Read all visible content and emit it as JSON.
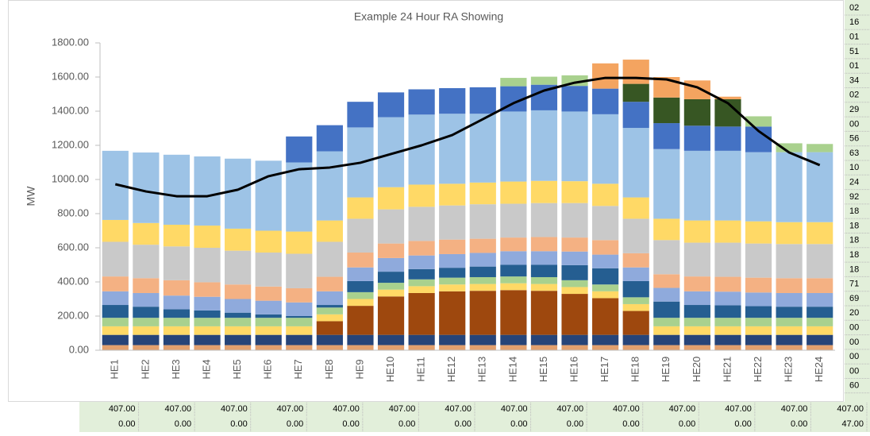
{
  "chart_data": {
    "type": "bar",
    "stacked": true,
    "title": "Example 24 Hour RA Showing",
    "ylabel": "MW",
    "categories": [
      "HE1",
      "HE2",
      "HE3",
      "HE4",
      "HE5",
      "HE6",
      "HE7",
      "HE8",
      "HE9",
      "HE10",
      "HE11",
      "HE12",
      "HE13",
      "HE14",
      "HE15",
      "HE16",
      "HE17",
      "HE18",
      "HE19",
      "HE20",
      "HE21",
      "HE22",
      "HE23",
      "HE24"
    ],
    "ylim": [
      0,
      1800
    ],
    "yticks": [
      {
        "value": 0,
        "label": "0.00"
      },
      {
        "value": 200,
        "label": "200.00"
      },
      {
        "value": 400,
        "label": "400.00"
      },
      {
        "value": 600,
        "label": "600.00"
      },
      {
        "value": 800,
        "label": "800.00"
      },
      {
        "value": 1000,
        "label": "1000.00"
      },
      {
        "value": 1200,
        "label": "1200.00"
      },
      {
        "value": 1400,
        "label": "1400.00"
      },
      {
        "value": 1600,
        "label": "1600.00"
      },
      {
        "value": 1800,
        "label": "1800.00"
      }
    ],
    "series": [
      {
        "color": "#e2a06e",
        "values": [
          30,
          30,
          30,
          30,
          30,
          30,
          30,
          30,
          30,
          30,
          30,
          30,
          30,
          30,
          30,
          30,
          30,
          30,
          30,
          30,
          30,
          30,
          30,
          30
        ]
      },
      {
        "color": "#264478",
        "values": [
          60,
          60,
          60,
          60,
          60,
          60,
          60,
          60,
          60,
          60,
          60,
          60,
          60,
          60,
          60,
          60,
          60,
          60,
          60,
          60,
          60,
          60,
          60,
          60
        ]
      },
      {
        "color": "#9e480e",
        "values": [
          0,
          0,
          0,
          0,
          0,
          0,
          0,
          80,
          170,
          225,
          245,
          255,
          258,
          262,
          258,
          240,
          215,
          140,
          0,
          0,
          0,
          0,
          0,
          0
        ]
      },
      {
        "color": "#ffd966",
        "values": [
          50,
          50,
          50,
          50,
          50,
          50,
          50,
          40,
          40,
          40,
          40,
          40,
          40,
          40,
          40,
          40,
          40,
          40,
          50,
          50,
          50,
          50,
          50,
          50
        ]
      },
      {
        "color": "#a9d18e",
        "values": [
          50,
          50,
          50,
          50,
          50,
          50,
          50,
          40,
          40,
          40,
          40,
          40,
          40,
          40,
          40,
          40,
          40,
          40,
          50,
          50,
          50,
          50,
          50,
          50
        ]
      },
      {
        "color": "#255e91",
        "values": [
          75,
          65,
          50,
          43,
          30,
          20,
          10,
          15,
          65,
          65,
          60,
          58,
          62,
          68,
          72,
          88,
          95,
          95,
          95,
          75,
          73,
          68,
          65,
          65
        ]
      },
      {
        "color": "#8faadc",
        "values": [
          80,
          80,
          80,
          80,
          80,
          80,
          80,
          80,
          80,
          80,
          80,
          80,
          80,
          80,
          80,
          80,
          80,
          80,
          80,
          80,
          80,
          80,
          80,
          80
        ]
      },
      {
        "color": "#f4b183",
        "values": [
          87,
          87,
          90,
          85,
          85,
          83,
          83,
          85,
          87,
          85,
          85,
          85,
          83,
          80,
          83,
          82,
          85,
          83,
          80,
          87,
          87,
          87,
          87,
          87
        ]
      },
      {
        "color": "#c9c9c9",
        "values": [
          203,
          196,
          198,
          202,
          198,
          199,
          202,
          205,
          198,
          200,
          200,
          200,
          202,
          198,
          199,
          202,
          200,
          202,
          200,
          198,
          200,
          200,
          200,
          200
        ]
      },
      {
        "color": "#ffd966",
        "values": [
          128,
          127,
          127,
          130,
          129,
          128,
          130,
          125,
          125,
          130,
          130,
          127,
          127,
          130,
          130,
          128,
          130,
          125,
          125,
          130,
          130,
          130,
          128,
          128
        ]
      },
      {
        "color": "#9dc3e6",
        "values": [
          405,
          413,
          410,
          405,
          410,
          410,
          405,
          405,
          410,
          410,
          410,
          410,
          403,
          410,
          413,
          408,
          407,
          407,
          408,
          408,
          408,
          405,
          410,
          410
        ]
      },
      {
        "color": "#4472c4",
        "values": [
          0,
          0,
          0,
          0,
          0,
          0,
          152,
          153,
          150,
          145,
          148,
          150,
          155,
          148,
          150,
          150,
          150,
          153,
          152,
          147,
          142,
          150,
          0,
          0
        ]
      },
      {
        "color": "#375623",
        "values": [
          0,
          0,
          0,
          0,
          0,
          0,
          0,
          0,
          0,
          0,
          0,
          0,
          0,
          0,
          0,
          0,
          0,
          105,
          150,
          155,
          160,
          0,
          0,
          0
        ]
      },
      {
        "color": "#a9d18e",
        "values": [
          0,
          0,
          0,
          0,
          0,
          0,
          0,
          0,
          0,
          0,
          0,
          0,
          0,
          49,
          47,
          62,
          0,
          0,
          0,
          0,
          0,
          60,
          52,
          48
        ]
      },
      {
        "color": "#f4a460",
        "values": [
          0,
          0,
          0,
          0,
          0,
          0,
          0,
          0,
          0,
          0,
          0,
          0,
          0,
          0,
          0,
          0,
          148,
          142,
          120,
          110,
          15,
          0,
          0,
          0
        ]
      }
    ],
    "line": {
      "color": "#000000",
      "values": [
        972,
        930,
        902,
        902,
        940,
        1019,
        1060,
        1070,
        1098,
        1149,
        1200,
        1260,
        1353,
        1447,
        1521,
        1567,
        1595,
        1595,
        1586,
        1540,
        1447,
        1284,
        1158,
        1084
      ]
    }
  },
  "sheet": {
    "right_column": [
      "02",
      "16",
      "01",
      "51",
      "01",
      "34",
      "02",
      "29",
      "00",
      "56",
      "63",
      "10",
      "24",
      "92",
      "18",
      "18",
      "18",
      "18",
      "18",
      "71",
      "69",
      "20",
      "00",
      "00",
      "00",
      "00",
      "60"
    ],
    "row1": [
      "407.00",
      "407.00",
      "407.00",
      "407.00",
      "407.00",
      "407.00",
      "407.00",
      "407.00",
      "407.00",
      "407.00",
      "407.00",
      "407.00",
      "407.00",
      "407.00"
    ],
    "row2": [
      "0.00",
      "0.00",
      "0.00",
      "0.00",
      "0.00",
      "0.00",
      "0.00",
      "0.00",
      "0.00",
      "0.00",
      "0.00",
      "0.00",
      "0.00",
      "47.00"
    ]
  }
}
